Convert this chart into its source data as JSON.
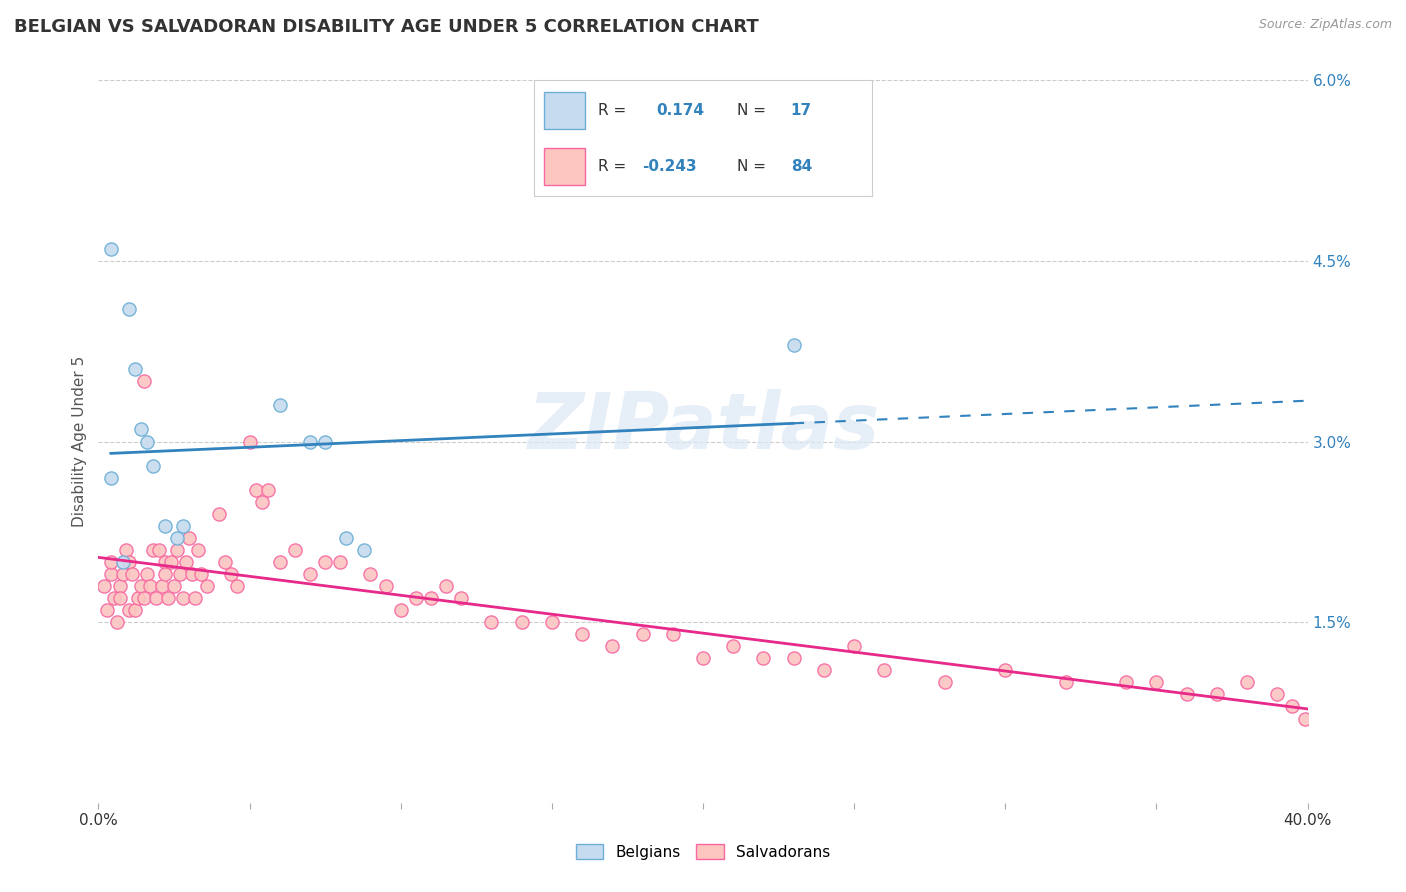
{
  "title": "BELGIAN VS SALVADORAN DISABILITY AGE UNDER 5 CORRELATION CHART",
  "source_text": "Source: ZipAtlas.com",
  "ylabel": "Disability Age Under 5",
  "x_min": 0.0,
  "x_max": 0.4,
  "y_min": 0.0,
  "y_max": 0.06,
  "y_ticks": [
    0.0,
    0.015,
    0.03,
    0.045,
    0.06
  ],
  "y_tick_labels": [
    "",
    "1.5%",
    "3.0%",
    "4.5%",
    "6.0%"
  ],
  "x_ticks": [
    0.0,
    0.05,
    0.1,
    0.15,
    0.2,
    0.25,
    0.3,
    0.35,
    0.4
  ],
  "x_tick_labels_show": [
    "0.0%",
    "",
    "",
    "",
    "",
    "",
    "",
    "",
    "40.0%"
  ],
  "belgian_R": 0.174,
  "belgian_N": 17,
  "salvadoran_R": -0.243,
  "salvadoran_N": 84,
  "belgian_color": "#6baed6",
  "belgian_fill": "#c6dbef",
  "salvadoran_color": "#f768a1",
  "salvadoran_fill": "#fcc5c0",
  "trend_belgian_color": "#3182bd",
  "trend_salvadoran_color": "#e7298a",
  "belgian_points_x": [
    0.004,
    0.008,
    0.01,
    0.012,
    0.014,
    0.016,
    0.018,
    0.022,
    0.026,
    0.028,
    0.06,
    0.07,
    0.075,
    0.082,
    0.088,
    0.23,
    0.004
  ],
  "belgian_points_y": [
    0.027,
    0.02,
    0.041,
    0.036,
    0.031,
    0.03,
    0.028,
    0.023,
    0.022,
    0.023,
    0.033,
    0.03,
    0.03,
    0.022,
    0.021,
    0.038,
    0.046
  ],
  "salvadoran_points_x": [
    0.002,
    0.003,
    0.004,
    0.004,
    0.005,
    0.006,
    0.007,
    0.007,
    0.008,
    0.009,
    0.01,
    0.01,
    0.011,
    0.012,
    0.013,
    0.014,
    0.015,
    0.016,
    0.017,
    0.018,
    0.019,
    0.02,
    0.021,
    0.022,
    0.022,
    0.023,
    0.024,
    0.025,
    0.026,
    0.027,
    0.028,
    0.029,
    0.03,
    0.031,
    0.032,
    0.033,
    0.034,
    0.036,
    0.04,
    0.042,
    0.044,
    0.046,
    0.05,
    0.052,
    0.054,
    0.056,
    0.06,
    0.065,
    0.07,
    0.075,
    0.08,
    0.09,
    0.095,
    0.1,
    0.105,
    0.11,
    0.115,
    0.12,
    0.13,
    0.14,
    0.15,
    0.16,
    0.17,
    0.18,
    0.19,
    0.2,
    0.21,
    0.22,
    0.23,
    0.24,
    0.25,
    0.26,
    0.28,
    0.3,
    0.32,
    0.34,
    0.35,
    0.36,
    0.37,
    0.38,
    0.39,
    0.395,
    0.399,
    0.015
  ],
  "salvadoran_points_y": [
    0.018,
    0.016,
    0.019,
    0.02,
    0.017,
    0.015,
    0.018,
    0.017,
    0.019,
    0.021,
    0.02,
    0.016,
    0.019,
    0.016,
    0.017,
    0.018,
    0.017,
    0.019,
    0.018,
    0.021,
    0.017,
    0.021,
    0.018,
    0.02,
    0.019,
    0.017,
    0.02,
    0.018,
    0.021,
    0.019,
    0.017,
    0.02,
    0.022,
    0.019,
    0.017,
    0.021,
    0.019,
    0.018,
    0.024,
    0.02,
    0.019,
    0.018,
    0.03,
    0.026,
    0.025,
    0.026,
    0.02,
    0.021,
    0.019,
    0.02,
    0.02,
    0.019,
    0.018,
    0.016,
    0.017,
    0.017,
    0.018,
    0.017,
    0.015,
    0.015,
    0.015,
    0.014,
    0.013,
    0.014,
    0.014,
    0.012,
    0.013,
    0.012,
    0.012,
    0.011,
    0.013,
    0.011,
    0.01,
    0.011,
    0.01,
    0.01,
    0.01,
    0.009,
    0.009,
    0.01,
    0.009,
    0.008,
    0.007,
    0.035
  ],
  "watermark": "ZIPatlas",
  "background_color": "#ffffff",
  "grid_color": "#cccccc",
  "figsize": [
    14.06,
    8.92
  ],
  "dpi": 100
}
